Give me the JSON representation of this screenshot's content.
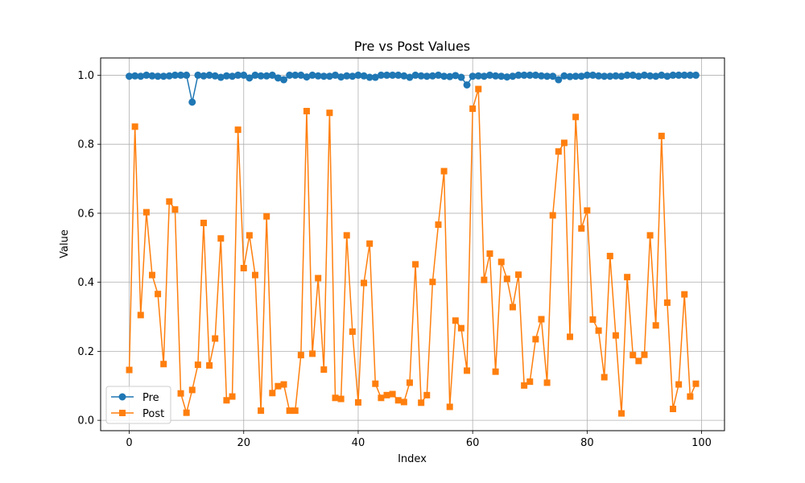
{
  "chart_data": {
    "type": "line",
    "title": "Pre vs Post Values",
    "xlabel": "Index",
    "ylabel": "Value",
    "xlim": [
      -5,
      104
    ],
    "ylim": [
      -0.03,
      1.05
    ],
    "xticks": [
      0,
      20,
      40,
      60,
      80,
      100
    ],
    "yticks": [
      0.0,
      0.2,
      0.4,
      0.6,
      0.8,
      1.0
    ],
    "xtick_labels": [
      "0",
      "20",
      "40",
      "60",
      "80",
      "100"
    ],
    "ytick_labels": [
      "0.0",
      "0.2",
      "0.4",
      "0.6",
      "0.8",
      "1.0"
    ],
    "grid": true,
    "legend_position": "lower-left",
    "x": [
      0,
      1,
      2,
      3,
      4,
      5,
      6,
      7,
      8,
      9,
      10,
      11,
      12,
      13,
      14,
      15,
      16,
      17,
      18,
      19,
      20,
      21,
      22,
      23,
      24,
      25,
      26,
      27,
      28,
      29,
      30,
      31,
      32,
      33,
      34,
      35,
      36,
      37,
      38,
      39,
      40,
      41,
      42,
      43,
      44,
      45,
      46,
      47,
      48,
      49,
      50,
      51,
      52,
      53,
      54,
      55,
      56,
      57,
      58,
      59,
      60,
      61,
      62,
      63,
      64,
      65,
      66,
      67,
      68,
      69,
      70,
      71,
      72,
      73,
      74,
      75,
      76,
      77,
      78,
      79,
      80,
      81,
      82,
      83,
      84,
      85,
      86,
      87,
      88,
      89,
      90,
      91,
      92,
      93,
      94,
      95,
      96,
      97,
      98,
      99
    ],
    "series": [
      {
        "name": "Pre",
        "color": "#1f77b4",
        "marker": "circle",
        "values": [
          0.997,
          0.998,
          0.997,
          1.0,
          0.998,
          0.997,
          0.997,
          0.998,
          1.0,
          1.0,
          1.0,
          0.922,
          1.0,
          0.998,
          1.0,
          0.998,
          0.994,
          0.998,
          0.997,
          1.0,
          1.0,
          0.992,
          1.0,
          0.998,
          0.998,
          1.0,
          0.992,
          0.987,
          1.0,
          1.0,
          1.0,
          0.995,
          1.0,
          0.998,
          0.997,
          0.997,
          1.0,
          0.995,
          0.998,
          0.997,
          1.0,
          0.998,
          0.994,
          0.994,
          1.0,
          1.0,
          1.0,
          1.0,
          0.998,
          0.994,
          1.0,
          0.998,
          0.997,
          0.998,
          1.0,
          0.997,
          0.996,
          0.999,
          0.994,
          0.972,
          0.997,
          0.998,
          0.997,
          1.0,
          0.998,
          0.997,
          0.995,
          0.997,
          1.0,
          1.0,
          1.0,
          1.0,
          0.998,
          0.997,
          0.997,
          0.987,
          0.998,
          0.996,
          0.997,
          0.997,
          1.0,
          1.0,
          0.998,
          0.997,
          0.997,
          0.998,
          0.997,
          1.0,
          1.0,
          0.997,
          1.0,
          0.998,
          0.997,
          1.0,
          0.997,
          1.0,
          1.0,
          1.0,
          1.0,
          1.0
        ]
      },
      {
        "name": "Post",
        "color": "#ff7f0e",
        "marker": "square",
        "values": [
          0.146,
          0.851,
          0.305,
          0.603,
          0.421,
          0.366,
          0.163,
          0.634,
          0.611,
          0.078,
          0.022,
          0.088,
          0.161,
          0.572,
          0.159,
          0.237,
          0.527,
          0.058,
          0.069,
          0.842,
          0.441,
          0.536,
          0.421,
          0.028,
          0.591,
          0.079,
          0.099,
          0.104,
          0.028,
          0.028,
          0.189,
          0.896,
          0.193,
          0.412,
          0.147,
          0.891,
          0.065,
          0.062,
          0.536,
          0.257,
          0.052,
          0.398,
          0.512,
          0.106,
          0.065,
          0.073,
          0.076,
          0.058,
          0.053,
          0.109,
          0.452,
          0.051,
          0.073,
          0.401,
          0.567,
          0.722,
          0.039,
          0.289,
          0.267,
          0.144,
          0.903,
          0.96,
          0.407,
          0.483,
          0.141,
          0.459,
          0.41,
          0.328,
          0.422,
          0.101,
          0.112,
          0.235,
          0.293,
          0.109,
          0.594,
          0.779,
          0.804,
          0.242,
          0.879,
          0.556,
          0.608,
          0.292,
          0.26,
          0.125,
          0.476,
          0.246,
          0.02,
          0.415,
          0.189,
          0.172,
          0.19,
          0.536,
          0.275,
          0.824,
          0.341,
          0.033,
          0.104,
          0.365,
          0.069,
          0.106
        ]
      }
    ]
  }
}
